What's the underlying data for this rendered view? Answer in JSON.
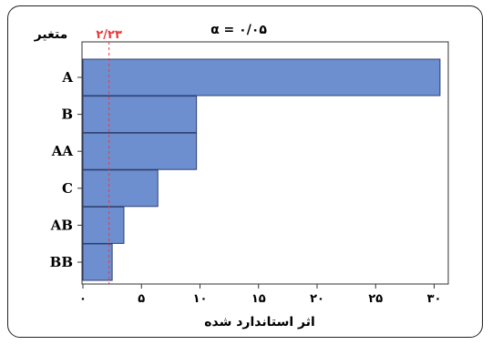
{
  "chart_data": {
    "type": "bar",
    "orientation": "horizontal",
    "categories": [
      "A",
      "B",
      "AA",
      "C",
      "AB",
      "BB"
    ],
    "values": [
      30.5,
      9.7,
      9.7,
      6.4,
      3.5,
      2.5
    ],
    "xlim": [
      0,
      32
    ],
    "x_ticks": [
      0,
      5,
      10,
      15,
      20,
      25,
      30
    ],
    "x_tick_labels": [
      "۰",
      "۵",
      "۱۰",
      "۱۵",
      "۲۰",
      "۲۵",
      "۳۰"
    ],
    "xlabel": "اثر استاندارد شده",
    "ylabel": "متغیر",
    "reference_line": {
      "value": 2.23,
      "label": "۲/۲۳",
      "color": "#e53b3b"
    },
    "annotation": "α = ۰/۰۵",
    "bar_color": "#6d8fcf",
    "grid": false
  }
}
